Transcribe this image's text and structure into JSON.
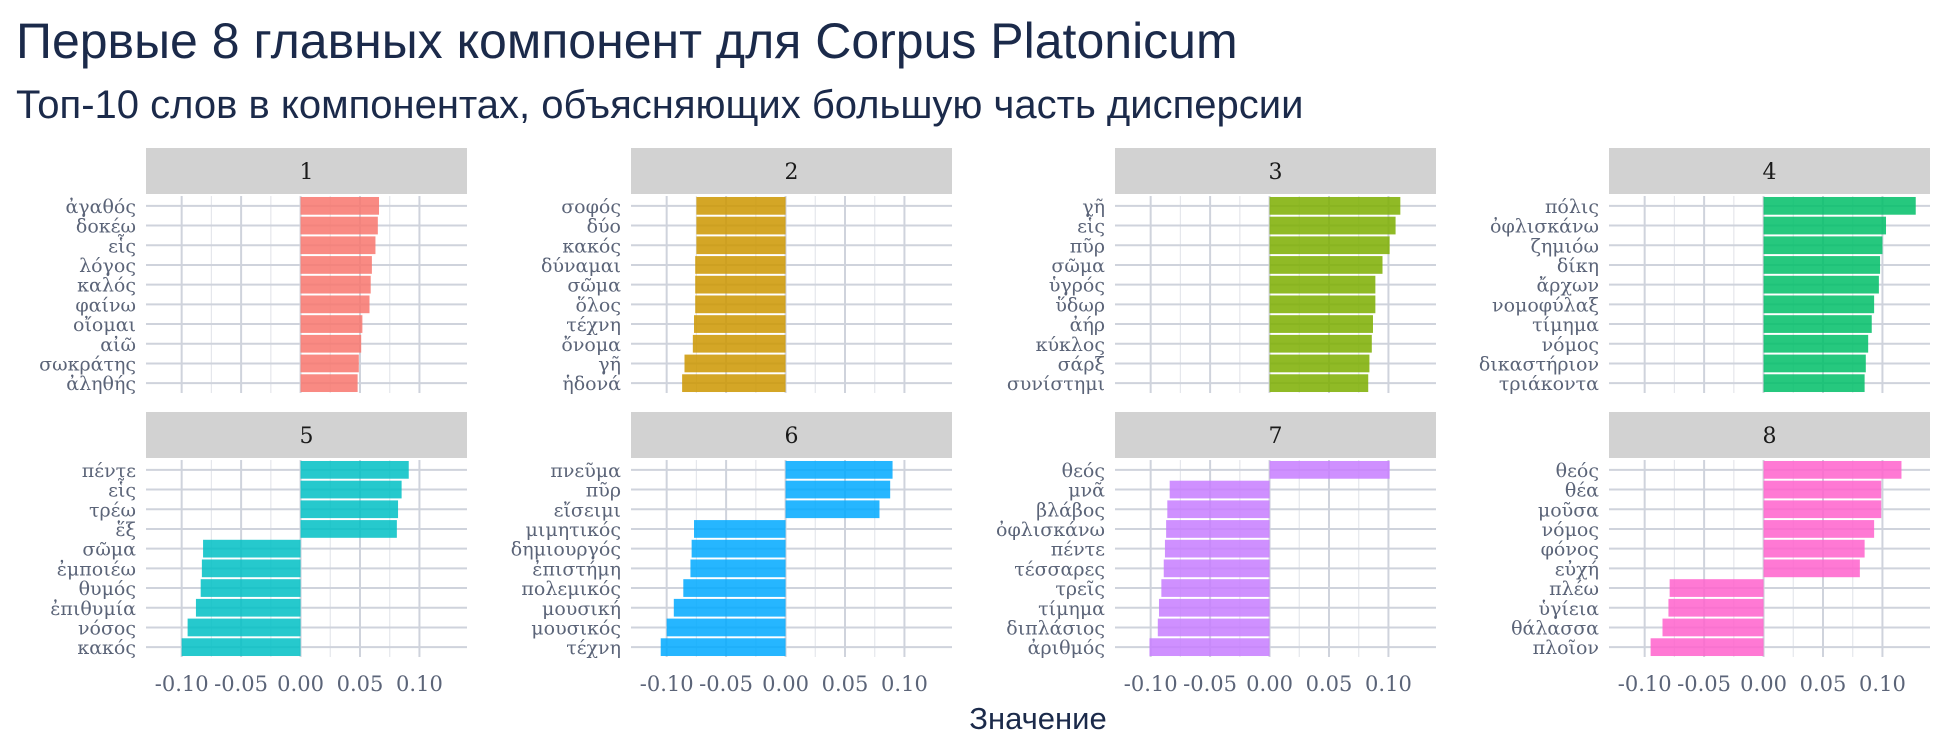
{
  "chart_data": {
    "type": "bar",
    "orientation": "horizontal",
    "title": "Первые 8 главных компонент для Corpus Platonicum",
    "subtitle": "Топ-10 слов в компонентах, объясняющих большую часть дисперсии",
    "xlabel": "Значение",
    "ylabel": "",
    "xlim": [
      -0.13,
      0.14
    ],
    "x_ticks": [
      "-0.10",
      "-0.05",
      "0.00",
      "0.05",
      "0.10"
    ],
    "x_tick_values": [
      -0.1,
      -0.05,
      0,
      0.05,
      0.1
    ],
    "grid": true,
    "legend": "none",
    "facets": [
      {
        "label": "1",
        "color": "#f8766d",
        "categories": [
          "ἀγαθός",
          "δοκέω",
          "εἷς",
          "λόγος",
          "καλός",
          "φαίνω",
          "οἴομαι",
          "αἰῶ",
          "σωκράτης",
          "ἀληθής"
        ],
        "values": [
          0.066,
          0.065,
          0.063,
          0.06,
          0.059,
          0.058,
          0.052,
          0.051,
          0.049,
          0.048
        ]
      },
      {
        "label": "2",
        "color": "#cd9600",
        "categories": [
          "σοφός",
          "δύο",
          "κακός",
          "δύναμαι",
          "σῶμα",
          "ὅλος",
          "τέχνη",
          "ὄνομα",
          "γῆ",
          "ἡδονά"
        ],
        "values": [
          -0.075,
          -0.075,
          -0.075,
          -0.076,
          -0.076,
          -0.076,
          -0.077,
          -0.078,
          -0.085,
          -0.087
        ]
      },
      {
        "label": "3",
        "color": "#7cae00",
        "categories": [
          "γῆ",
          "εἷς",
          "πῦρ",
          "σῶμα",
          "ὑγρός",
          "ὕδωρ",
          "ἀήρ",
          "κύκλος",
          "σάρξ",
          "συνίστημι"
        ],
        "values": [
          0.11,
          0.106,
          0.101,
          0.095,
          0.089,
          0.089,
          0.087,
          0.086,
          0.084,
          0.083
        ]
      },
      {
        "label": "4",
        "color": "#00be67",
        "categories": [
          "πόλις",
          "ὀφλισκάνω",
          "ζημιόω",
          "δίκη",
          "ἄρχων",
          "νομοφύλαξ",
          "τίμημα",
          "νόμος",
          "δικαστήριον",
          "τριάκοντα"
        ],
        "values": [
          0.128,
          0.103,
          0.1,
          0.098,
          0.097,
          0.093,
          0.091,
          0.088,
          0.086,
          0.085
        ]
      },
      {
        "label": "5",
        "color": "#00bfc4",
        "categories": [
          "πέντε",
          "εἷς",
          "τρέω",
          "ἕξ",
          "σῶμα",
          "ἐμποιέω",
          "θυμός",
          "ἐπιθυμία",
          "νόσος",
          "κακός"
        ],
        "values": [
          0.091,
          0.085,
          0.082,
          0.081,
          -0.082,
          -0.083,
          -0.084,
          -0.088,
          -0.095,
          -0.1
        ]
      },
      {
        "label": "6",
        "color": "#00a9ff",
        "categories": [
          "πνεῦμα",
          "πῦρ",
          "εἴσειμι",
          "μιμητικός",
          "δημιουργός",
          "ἐπιστήμη",
          "πολεμικός",
          "μουσική",
          "μουσικός",
          "τέχνη"
        ],
        "values": [
          0.09,
          0.088,
          0.079,
          -0.077,
          -0.079,
          -0.08,
          -0.086,
          -0.094,
          -0.1,
          -0.105
        ]
      },
      {
        "label": "7",
        "color": "#c77cff",
        "categories": [
          "θεός",
          "μνᾶ",
          "βλάβος",
          "ὀφλισκάνω",
          "πέντε",
          "τέσσαρες",
          "τρεῖς",
          "τίμημα",
          "διπλάσιος",
          "ἀριθμός"
        ],
        "values": [
          0.101,
          -0.084,
          -0.086,
          -0.087,
          -0.088,
          -0.089,
          -0.091,
          -0.093,
          -0.094,
          -0.101
        ]
      },
      {
        "label": "8",
        "color": "#ff61cc",
        "categories": [
          "θεός",
          "θέα",
          "μοῦσα",
          "νόμος",
          "φόνος",
          "εὐχή",
          "πλέω",
          "ὑγίεια",
          "θάλασσα",
          "πλοῖον"
        ],
        "values": [
          0.116,
          0.099,
          0.099,
          0.093,
          0.085,
          0.081,
          -0.079,
          -0.08,
          -0.085,
          -0.095
        ]
      }
    ]
  }
}
